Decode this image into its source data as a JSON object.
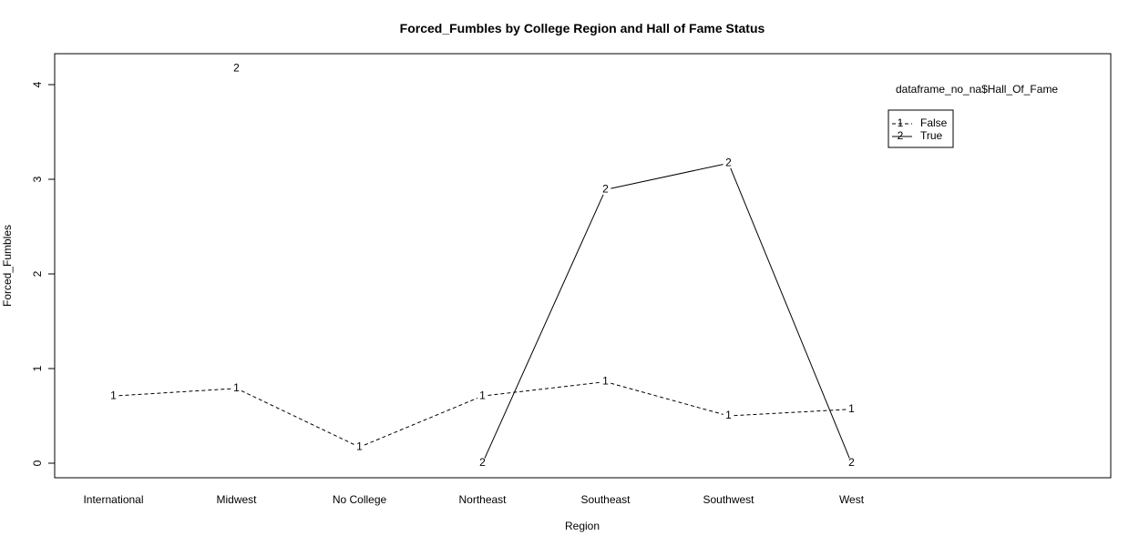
{
  "chart_data": {
    "type": "line",
    "title": "Forced_Fumbles by College Region and Hall of Fame Status",
    "xlabel": "Region",
    "ylabel": "Forced_Fumbles",
    "categories": [
      "International",
      "Midwest",
      "No College",
      "Northeast",
      "Southeast",
      "Southwest",
      "West"
    ],
    "ylim": [
      -0.15,
      4.3
    ],
    "yticks": [
      "0",
      "1",
      "2",
      "3",
      "4"
    ],
    "grid": false,
    "legend": {
      "title": "dataframe_no_na$Hall_Of_Fame",
      "position": "top-right",
      "entries": [
        {
          "symbol": "1",
          "label": "False",
          "line": "dashed"
        },
        {
          "symbol": "2",
          "label": "True",
          "line": "solid"
        }
      ]
    },
    "series": [
      {
        "symbol": "1",
        "line": "dashed",
        "values": [
          0.71,
          0.79,
          0.17,
          0.71,
          0.86,
          0.5,
          0.57
        ]
      },
      {
        "symbol": "2",
        "line": "solid",
        "values": [
          null,
          4.17,
          null,
          0.0,
          2.89,
          3.17,
          0.0
        ]
      }
    ]
  }
}
